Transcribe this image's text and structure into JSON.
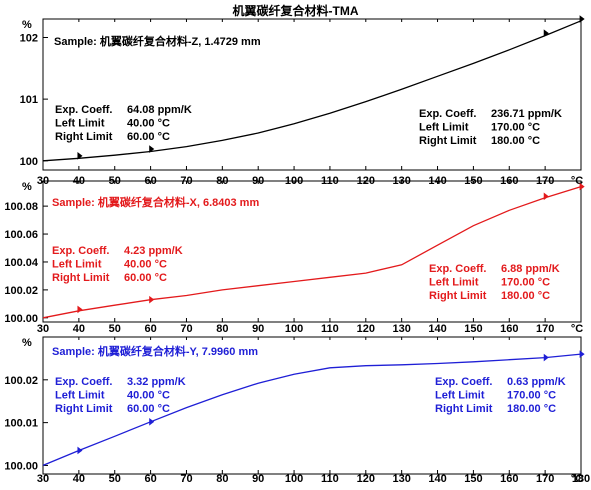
{
  "title": "机翼碳纤复合材料-TMA",
  "chart_data": [
    {
      "type": "line",
      "sample_label": "Sample: 机翼碳纤复合材料-Z, 1.4729 mm",
      "color": "#000000",
      "y_unit": "%",
      "x_unit": "°C",
      "xlim": [
        30,
        180
      ],
      "ylim": [
        99.85,
        102.3
      ],
      "x_ticks": [
        "30",
        "40",
        "50",
        "60",
        "70",
        "80",
        "90",
        "100",
        "110",
        "120",
        "130",
        "140",
        "150",
        "160",
        "170",
        "°C"
      ],
      "y_ticks": [
        {
          "v": 100,
          "label": "100"
        },
        {
          "v": 101,
          "label": "101"
        },
        {
          "v": 102,
          "label": "102"
        }
      ],
      "series": [
        {
          "x": [
            30,
            40,
            50,
            60,
            70,
            80,
            90,
            100,
            110,
            120,
            130,
            140,
            150,
            160,
            170,
            180
          ],
          "y": [
            100.0,
            100.04,
            100.09,
            100.15,
            100.23,
            100.33,
            100.45,
            100.6,
            100.77,
            100.96,
            101.16,
            101.37,
            101.58,
            101.8,
            102.03,
            102.27
          ]
        }
      ],
      "markers": [
        {
          "x": 40,
          "y": 100.08
        },
        {
          "x": 60,
          "y": 100.19
        },
        {
          "x": 170,
          "y": 102.07
        },
        {
          "x": 180,
          "y": 102.3
        }
      ],
      "annotations": [
        {
          "rows": [
            [
              "Exp. Coeff.",
              "64.08 ppm/K"
            ],
            [
              "Left Limit",
              "40.00 °C"
            ],
            [
              "Right Limit",
              "60.00 °C"
            ]
          ]
        },
        {
          "rows": [
            [
              "Exp. Coeff.",
              "236.71 ppm/K"
            ],
            [
              "Left Limit",
              "170.00 °C"
            ],
            [
              "Right Limit",
              "180.00 °C"
            ]
          ]
        }
      ]
    },
    {
      "type": "line",
      "sample_label": "Sample: 机翼碳纤复合材料-X, 6.8403 mm",
      "color": "#e31a1c",
      "y_unit": "%",
      "x_unit": "°C",
      "xlim": [
        30,
        180
      ],
      "ylim": [
        99.997,
        100.098
      ],
      "x_ticks": [
        "30",
        "40",
        "50",
        "60",
        "70",
        "80",
        "90",
        "100",
        "110",
        "120",
        "130",
        "140",
        "150",
        "160",
        "170",
        "°C"
      ],
      "y_ticks": [
        {
          "v": 100.0,
          "label": "100.00"
        },
        {
          "v": 100.02,
          "label": "100.02"
        },
        {
          "v": 100.04,
          "label": "100.04"
        },
        {
          "v": 100.06,
          "label": "100.06"
        },
        {
          "v": 100.08,
          "label": "100.08"
        }
      ],
      "series": [
        {
          "x": [
            30,
            40,
            50,
            60,
            70,
            80,
            90,
            100,
            110,
            120,
            130,
            140,
            150,
            160,
            170,
            180
          ],
          "y": [
            100.0,
            100.005,
            100.009,
            100.013,
            100.016,
            100.02,
            100.023,
            100.026,
            100.029,
            100.032,
            100.038,
            100.052,
            100.066,
            100.077,
            100.086,
            100.094
          ]
        }
      ],
      "markers": [
        {
          "x": 40,
          "y": 100.006
        },
        {
          "x": 60,
          "y": 100.013
        },
        {
          "x": 170,
          "y": 100.087
        },
        {
          "x": 180,
          "y": 100.094
        }
      ],
      "annotations": [
        {
          "rows": [
            [
              "Exp. Coeff.",
              "4.23 ppm/K"
            ],
            [
              "Left Limit",
              "40.00 °C"
            ],
            [
              "Right Limit",
              "60.00 °C"
            ]
          ]
        },
        {
          "rows": [
            [
              "Exp. Coeff.",
              "6.88 ppm/K"
            ],
            [
              "Left Limit",
              "170.00 °C"
            ],
            [
              "Right Limit",
              "180.00 °C"
            ]
          ]
        }
      ]
    },
    {
      "type": "line",
      "sample_label": "Sample: 机翼碳纤复合材料-Y, 7.9960 mm",
      "color": "#1f1fd6",
      "y_unit": "%",
      "x_unit": "°C",
      "xlim": [
        30,
        180
      ],
      "ylim": [
        99.998,
        100.03
      ],
      "x_ticks": [
        "30",
        "40",
        "50",
        "60",
        "70",
        "80",
        "90",
        "100",
        "110",
        "120",
        "130",
        "140",
        "150",
        "160",
        "170",
        "180",
        "°C"
      ],
      "y_ticks": [
        {
          "v": 100.0,
          "label": "100.00"
        },
        {
          "v": 100.01,
          "label": "100.01"
        },
        {
          "v": 100.02,
          "label": "100.02"
        }
      ],
      "series": [
        {
          "x": [
            30,
            40,
            50,
            60,
            70,
            80,
            90,
            100,
            110,
            120,
            130,
            140,
            150,
            160,
            170,
            180
          ],
          "y": [
            100.0,
            100.0035,
            100.0068,
            100.0102,
            100.0135,
            100.0165,
            100.0192,
            100.0213,
            100.0228,
            100.0233,
            100.0235,
            100.0238,
            100.0242,
            100.0247,
            100.0252,
            100.026
          ]
        }
      ],
      "markers": [
        {
          "x": 40,
          "y": 100.0035
        },
        {
          "x": 60,
          "y": 100.0102
        },
        {
          "x": 170,
          "y": 100.0252
        },
        {
          "x": 180,
          "y": 100.026
        }
      ],
      "annotations": [
        {
          "rows": [
            [
              "Exp. Coeff.",
              "3.32 ppm/K"
            ],
            [
              "Left Limit",
              "40.00 °C"
            ],
            [
              "Right Limit",
              "60.00 °C"
            ]
          ]
        },
        {
          "rows": [
            [
              "Exp. Coeff.",
              "0.63 ppm/K"
            ],
            [
              "Left Limit",
              "170.00 °C"
            ],
            [
              "Right Limit",
              "180.00 °C"
            ]
          ]
        }
      ]
    }
  ]
}
